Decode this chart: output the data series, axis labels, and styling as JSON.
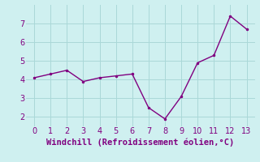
{
  "x": [
    0,
    1,
    2,
    3,
    4,
    5,
    6,
    7,
    8,
    9,
    10,
    11,
    12,
    13
  ],
  "y": [
    4.1,
    4.3,
    4.5,
    3.9,
    4.1,
    4.2,
    4.3,
    2.5,
    1.9,
    3.1,
    4.9,
    5.3,
    7.4,
    6.7
  ],
  "line_color": "#800080",
  "marker": ".",
  "marker_size": 3,
  "line_width": 1.0,
  "xlabel": "Windchill (Refroidissement éolien,°C)",
  "xlabel_fontsize": 7.5,
  "xlabel_color": "#800080",
  "xlim": [
    -0.5,
    13.5
  ],
  "ylim": [
    1.5,
    8.0
  ],
  "xticks": [
    0,
    1,
    2,
    3,
    4,
    5,
    6,
    7,
    8,
    9,
    10,
    11,
    12,
    13
  ],
  "yticks": [
    2,
    3,
    4,
    5,
    6,
    7
  ],
  "tick_fontsize": 7,
  "tick_color": "#800080",
  "background_color": "#cff0f0",
  "grid_color": "#aad8d8",
  "grid_linewidth": 0.7
}
